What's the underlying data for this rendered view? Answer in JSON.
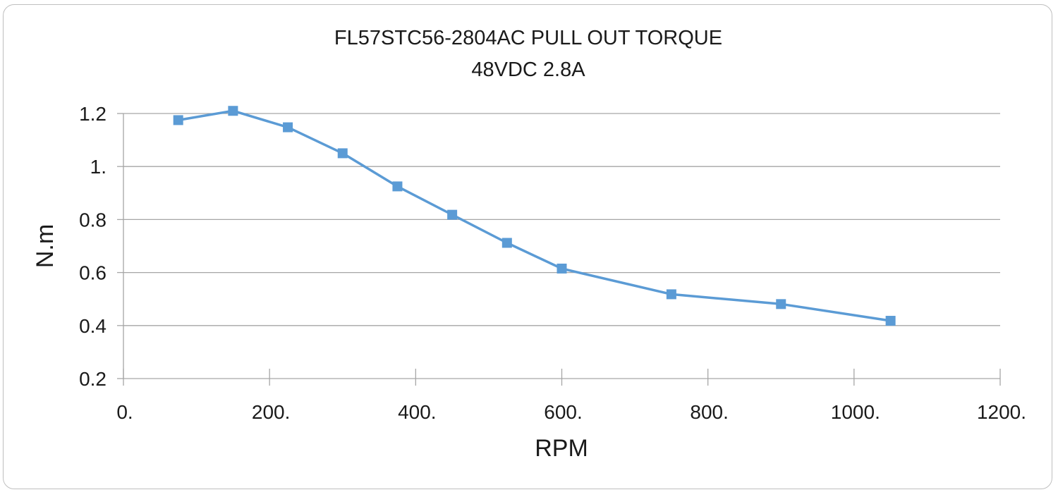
{
  "chart_data": {
    "type": "line",
    "title": "FL57STC56-2804AC  PULL  OUT   TORQUE",
    "subtitle": "48VDC 2.8A",
    "xlabel": "RPM",
    "ylabel": "N.m",
    "xlim": [
      0,
      1200
    ],
    "ylim": [
      0.2,
      1.2
    ],
    "x_ticks": [
      0,
      200,
      400,
      600,
      800,
      1000,
      1200
    ],
    "x_tick_labels": [
      "0.",
      "200.",
      "400.",
      "600.",
      "800.",
      "1000.",
      "1200."
    ],
    "y_ticks": [
      0.2,
      0.4,
      0.6,
      0.8,
      1.0,
      1.2
    ],
    "y_tick_labels": [
      "0.2",
      "0.4",
      "0.6",
      "0.8",
      "1.",
      "1.2"
    ],
    "grid": "horizontal",
    "legend": "none",
    "series": [
      {
        "color": "#5b9bd5",
        "marker": "square",
        "x": [
          75,
          150,
          225,
          300,
          375,
          450,
          525,
          600,
          750,
          900,
          1050
        ],
        "y": [
          1.175,
          1.21,
          1.148,
          1.05,
          0.925,
          0.818,
          0.712,
          0.615,
          0.518,
          0.481,
          0.418
        ]
      }
    ]
  }
}
